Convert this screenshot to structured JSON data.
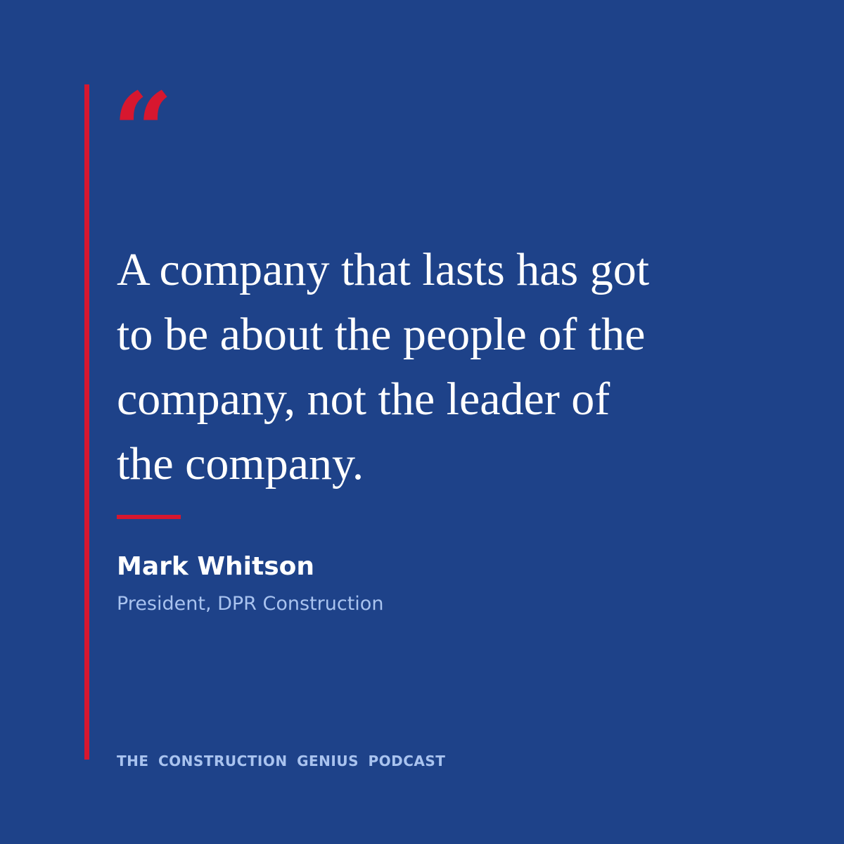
{
  "quote_mark": "“",
  "quote": {
    "lines": [
      "A company that lasts has got",
      "to be about the people of the",
      "company, not the leader of",
      "the company."
    ]
  },
  "author": {
    "name": "Mark Whitson",
    "role": "President, DPR Construction"
  },
  "footer": "THE CONSTRUCTION GENIUS PODCAST"
}
